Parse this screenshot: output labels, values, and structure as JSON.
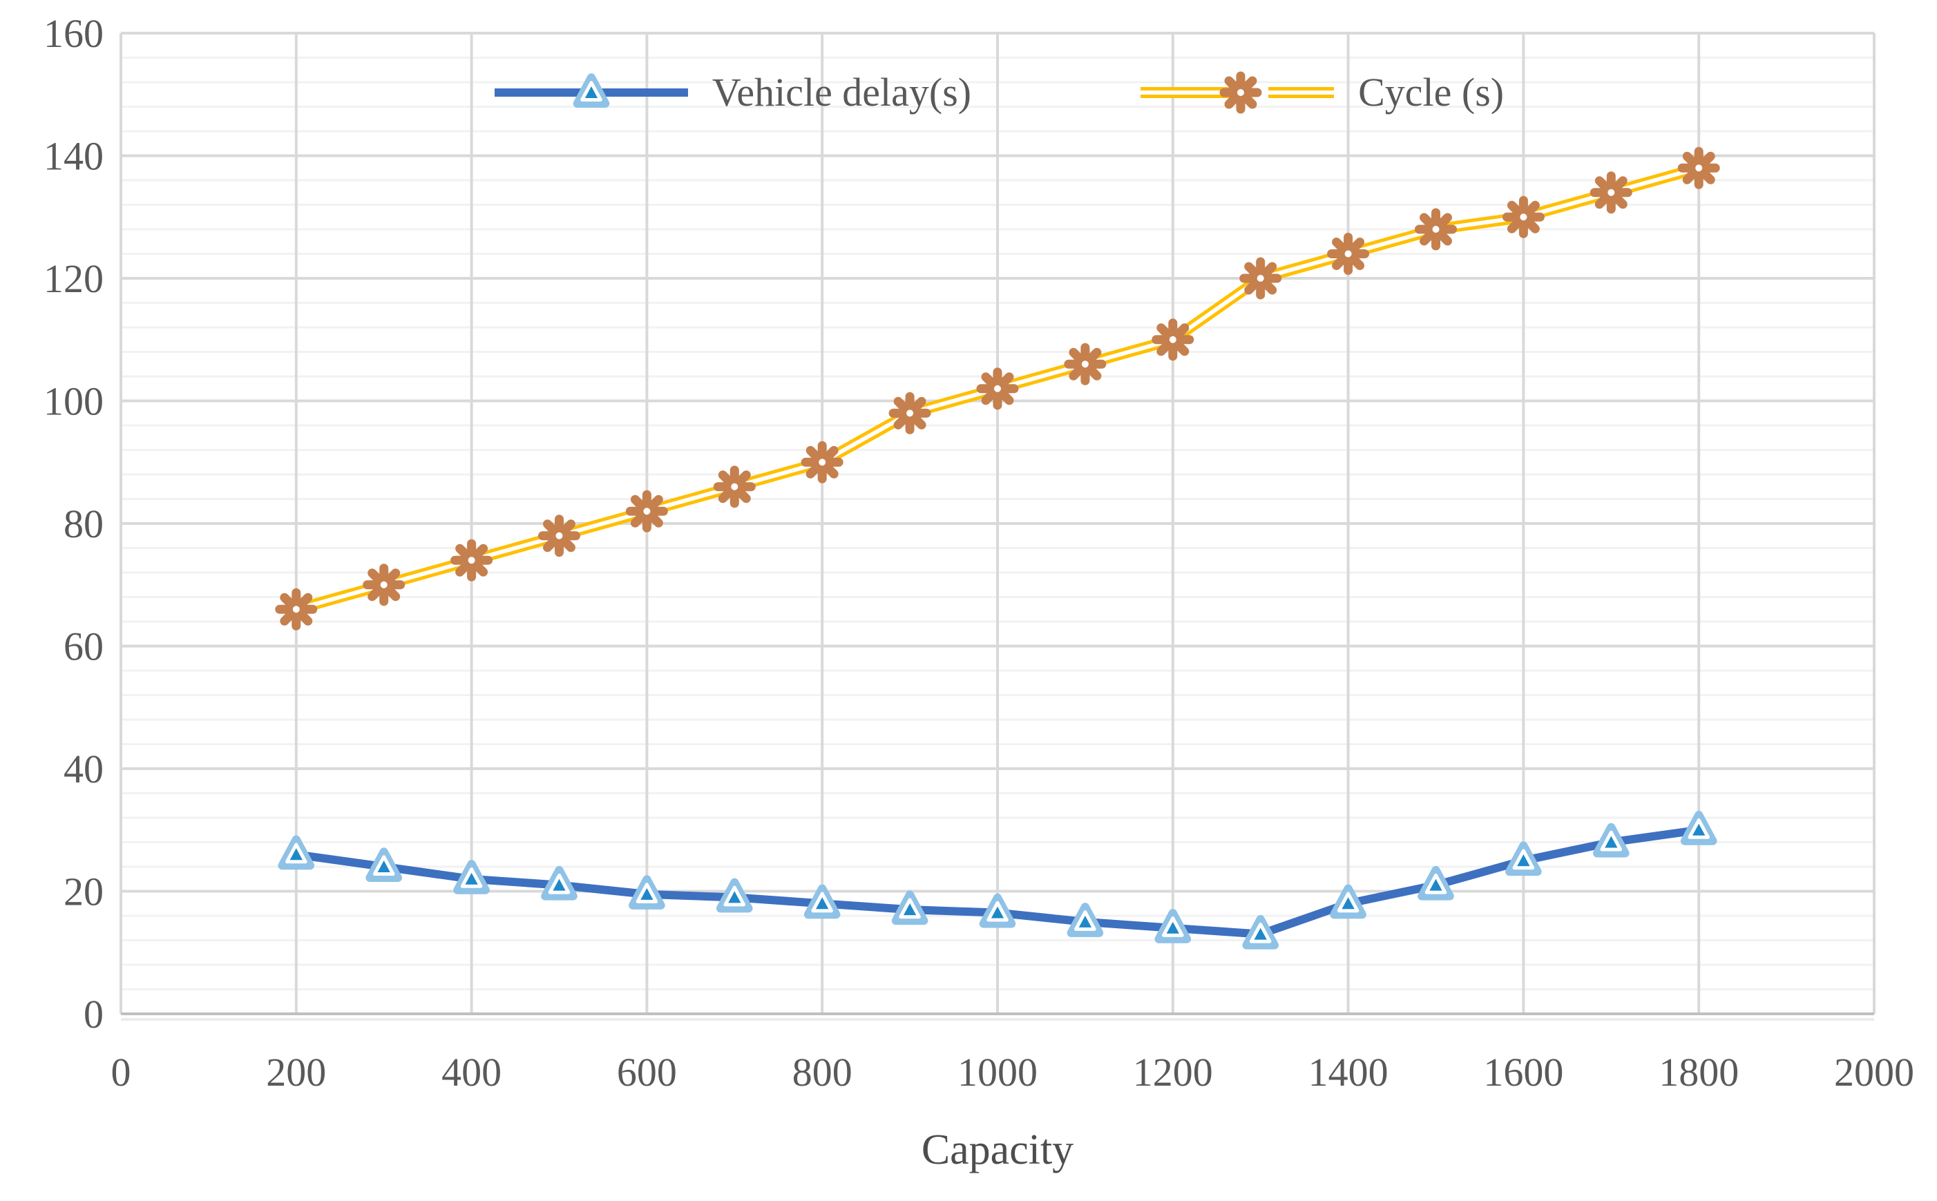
{
  "chart_data": {
    "type": "line",
    "title": "",
    "xlabel": "Capacity",
    "ylabel": "",
    "x": [
      200,
      300,
      400,
      500,
      600,
      700,
      800,
      900,
      1000,
      1100,
      1200,
      1300,
      1400,
      1500,
      1600,
      1700,
      1800
    ],
    "series": [
      {
        "name": "Vehicle delay(s)",
        "marker": "triangle",
        "line_color": "#3E70C0",
        "marker_outer": "#8FC2E6",
        "marker_fill": "#3FA2DC",
        "marker_core": "#1E88CA",
        "values": [
          26,
          24,
          22,
          21,
          19.5,
          19,
          18,
          17,
          16.5,
          15,
          14,
          13,
          18,
          21,
          25,
          28,
          30
        ]
      },
      {
        "name": "Cycle (s)",
        "marker": "asterisk",
        "line_color": "#FFC000",
        "line_inner": "#FFFFFF",
        "marker_color": "#C5804E",
        "values": [
          66,
          70,
          74,
          78,
          82,
          86,
          90,
          98,
          102,
          106,
          110,
          120,
          124,
          128,
          130,
          134,
          138
        ]
      }
    ],
    "xlim": [
      0,
      2000
    ],
    "ylim": [
      0,
      160
    ],
    "x_ticks": [
      0,
      200,
      400,
      600,
      800,
      1000,
      1200,
      1400,
      1600,
      1800,
      2000
    ],
    "y_ticks": [
      0,
      20,
      40,
      60,
      80,
      100,
      120,
      140,
      160
    ],
    "y_minor_step": 4,
    "grid": {
      "major_color": "#D9D9D9",
      "minor_color": "#F2F2F2",
      "axis_color": "#BFBFBF",
      "tick_text_color": "#595959"
    },
    "legend_position": "top-center"
  },
  "legend": {
    "items": [
      {
        "label": "Vehicle delay(s)"
      },
      {
        "label": "Cycle (s)"
      }
    ]
  }
}
